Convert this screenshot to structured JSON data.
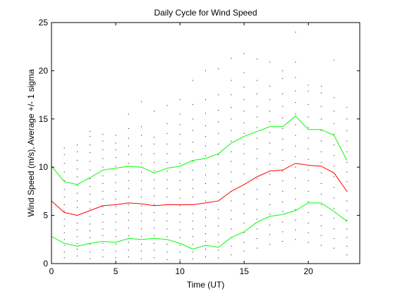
{
  "chart_data": {
    "type": "line",
    "title": "Daily Cycle for Wind Speed",
    "xlabel": "Time (UT)",
    "ylabel": "Wind Speed (m/s), Average +/- 1 sigma",
    "xlim": [
      0,
      24
    ],
    "ylim": [
      0,
      25
    ],
    "xticks": [
      0,
      5,
      10,
      15,
      20
    ],
    "yticks": [
      0,
      5,
      10,
      15,
      20,
      25
    ],
    "grid": false,
    "x": [
      0,
      1,
      2,
      3,
      4,
      5,
      6,
      7,
      8,
      9,
      10,
      11,
      12,
      13,
      14,
      15,
      16,
      17,
      18,
      19,
      20,
      21,
      22,
      23
    ],
    "series": [
      {
        "color": "#00ff00",
        "values": [
          10.1,
          8.5,
          8.2,
          8.9,
          9.7,
          9.9,
          10.1,
          10.0,
          9.4,
          9.9,
          10.1,
          10.7,
          10.9,
          11.4,
          12.5,
          13.2,
          13.7,
          14.2,
          14.2,
          15.3,
          13.9,
          13.9,
          13.3,
          10.7
        ]
      },
      {
        "color": "#ff0000",
        "values": [
          6.5,
          5.3,
          5.0,
          5.5,
          6.0,
          6.1,
          6.3,
          6.2,
          6.0,
          6.1,
          6.1,
          6.1,
          6.3,
          6.5,
          7.5,
          8.2,
          9.0,
          9.6,
          9.7,
          10.4,
          10.2,
          10.1,
          9.4,
          7.5
        ]
      },
      {
        "color": "#00ff00",
        "values": [
          2.8,
          2.1,
          1.8,
          2.1,
          2.3,
          2.2,
          2.6,
          2.5,
          2.6,
          2.5,
          2.1,
          1.5,
          1.9,
          1.7,
          2.7,
          3.3,
          4.3,
          4.9,
          5.1,
          5.5,
          6.3,
          6.3,
          5.4,
          4.4
        ]
      }
    ],
    "scatter_color": "#000000",
    "scatter_points": [
      [
        0,
        0.3
      ],
      [
        0,
        1.1
      ],
      [
        0,
        2.0
      ],
      [
        0,
        2.7
      ],
      [
        0,
        3.4
      ],
      [
        0,
        4.1
      ],
      [
        0,
        4.9
      ],
      [
        0,
        5.6
      ],
      [
        0,
        6.2
      ],
      [
        0,
        7.0
      ],
      [
        0,
        7.8
      ],
      [
        0,
        8.6
      ],
      [
        0,
        9.4
      ],
      [
        0,
        10.2
      ],
      [
        0,
        11.1
      ],
      [
        1,
        0.6
      ],
      [
        1,
        1.2
      ],
      [
        1,
        1.9
      ],
      [
        1,
        2.5
      ],
      [
        1,
        3.2
      ],
      [
        1,
        3.9
      ],
      [
        1,
        4.6
      ],
      [
        1,
        5.4
      ],
      [
        1,
        6.1
      ],
      [
        1,
        6.9
      ],
      [
        1,
        7.7
      ],
      [
        1,
        8.6
      ],
      [
        1,
        9.5
      ],
      [
        1,
        10.4
      ],
      [
        1,
        11.3
      ],
      [
        1,
        12.0
      ],
      [
        2,
        0.8
      ],
      [
        2,
        1.5
      ],
      [
        2,
        2.1
      ],
      [
        2,
        2.8
      ],
      [
        2,
        3.5
      ],
      [
        2,
        4.2
      ],
      [
        2,
        5.0
      ],
      [
        2,
        5.8
      ],
      [
        2,
        6.5
      ],
      [
        2,
        7.3
      ],
      [
        2,
        8.1
      ],
      [
        2,
        9.0
      ],
      [
        2,
        9.8
      ],
      [
        2,
        10.7
      ],
      [
        2,
        11.6
      ],
      [
        2,
        12.3
      ],
      [
        3,
        0.5
      ],
      [
        3,
        1.2
      ],
      [
        3,
        2.0
      ],
      [
        3,
        2.7
      ],
      [
        3,
        3.4
      ],
      [
        3,
        4.1
      ],
      [
        3,
        4.9
      ],
      [
        3,
        5.7
      ],
      [
        3,
        6.4
      ],
      [
        3,
        7.2
      ],
      [
        3,
        8.0
      ],
      [
        3,
        8.8
      ],
      [
        3,
        9.7
      ],
      [
        3,
        10.6
      ],
      [
        3,
        11.5
      ],
      [
        3,
        12.3
      ],
      [
        3,
        13.2
      ],
      [
        3,
        13.7
      ],
      [
        4,
        0.7
      ],
      [
        4,
        1.4
      ],
      [
        4,
        2.1
      ],
      [
        4,
        2.9
      ],
      [
        4,
        3.6
      ],
      [
        4,
        4.3
      ],
      [
        4,
        5.1
      ],
      [
        4,
        5.9
      ],
      [
        4,
        6.7
      ],
      [
        4,
        7.5
      ],
      [
        4,
        8.3
      ],
      [
        4,
        9.1
      ],
      [
        4,
        10.0
      ],
      [
        4,
        10.9
      ],
      [
        4,
        11.8
      ],
      [
        4,
        12.7
      ],
      [
        4,
        13.4
      ],
      [
        5,
        0.6
      ],
      [
        5,
        1.3
      ],
      [
        5,
        2.0
      ],
      [
        5,
        2.8
      ],
      [
        5,
        3.5
      ],
      [
        5,
        4.3
      ],
      [
        5,
        5.1
      ],
      [
        5,
        5.9
      ],
      [
        5,
        6.7
      ],
      [
        5,
        7.5
      ],
      [
        5,
        8.4
      ],
      [
        5,
        9.2
      ],
      [
        5,
        10.1
      ],
      [
        5,
        11.0
      ],
      [
        5,
        11.8
      ],
      [
        5,
        12.5
      ],
      [
        5,
        13.3
      ],
      [
        6,
        0.7
      ],
      [
        6,
        1.4
      ],
      [
        6,
        2.2
      ],
      [
        6,
        2.9
      ],
      [
        6,
        3.7
      ],
      [
        6,
        4.5
      ],
      [
        6,
        5.3
      ],
      [
        6,
        6.1
      ],
      [
        6,
        6.9
      ],
      [
        6,
        7.8
      ],
      [
        6,
        8.6
      ],
      [
        6,
        9.5
      ],
      [
        6,
        10.4
      ],
      [
        6,
        11.3
      ],
      [
        6,
        12.2
      ],
      [
        6,
        13.0
      ],
      [
        6,
        14.0
      ],
      [
        6,
        15.5
      ],
      [
        7,
        0.5
      ],
      [
        7,
        1.3
      ],
      [
        7,
        2.0
      ],
      [
        7,
        2.8
      ],
      [
        7,
        3.6
      ],
      [
        7,
        4.4
      ],
      [
        7,
        5.2
      ],
      [
        7,
        6.0
      ],
      [
        7,
        6.9
      ],
      [
        7,
        7.7
      ],
      [
        7,
        8.6
      ],
      [
        7,
        9.5
      ],
      [
        7,
        10.4
      ],
      [
        7,
        11.3
      ],
      [
        7,
        12.2
      ],
      [
        7,
        13.3
      ],
      [
        7,
        14.2
      ],
      [
        7,
        16.8
      ],
      [
        8,
        0.6
      ],
      [
        8,
        1.4
      ],
      [
        8,
        2.1
      ],
      [
        8,
        2.9
      ],
      [
        8,
        3.7
      ],
      [
        8,
        4.5
      ],
      [
        8,
        5.3
      ],
      [
        8,
        6.1
      ],
      [
        8,
        7.0
      ],
      [
        8,
        7.8
      ],
      [
        8,
        8.7
      ],
      [
        8,
        9.6
      ],
      [
        8,
        10.5
      ],
      [
        8,
        11.4
      ],
      [
        8,
        12.4
      ],
      [
        8,
        13.1
      ],
      [
        8,
        15.8
      ],
      [
        9,
        0.4
      ],
      [
        9,
        1.2
      ],
      [
        9,
        2.0
      ],
      [
        9,
        2.8
      ],
      [
        9,
        3.6
      ],
      [
        9,
        4.4
      ],
      [
        9,
        5.2
      ],
      [
        9,
        6.1
      ],
      [
        9,
        6.9
      ],
      [
        9,
        7.8
      ],
      [
        9,
        8.7
      ],
      [
        9,
        9.6
      ],
      [
        9,
        10.5
      ],
      [
        9,
        11.4
      ],
      [
        9,
        12.4
      ],
      [
        9,
        13.5
      ],
      [
        9,
        14.5
      ],
      [
        9,
        16.4
      ],
      [
        10,
        0.4
      ],
      [
        10,
        1.2
      ],
      [
        10,
        1.9
      ],
      [
        10,
        2.7
      ],
      [
        10,
        3.5
      ],
      [
        10,
        4.3
      ],
      [
        10,
        5.1
      ],
      [
        10,
        6.0
      ],
      [
        10,
        6.8
      ],
      [
        10,
        7.7
      ],
      [
        10,
        8.6
      ],
      [
        10,
        9.5
      ],
      [
        10,
        10.4
      ],
      [
        10,
        11.4
      ],
      [
        10,
        12.4
      ],
      [
        10,
        13.4
      ],
      [
        10,
        14.4
      ],
      [
        10,
        15.5
      ],
      [
        10,
        17.0
      ],
      [
        11,
        0.5
      ],
      [
        11,
        1.2
      ],
      [
        11,
        2.0
      ],
      [
        11,
        2.8
      ],
      [
        11,
        3.6
      ],
      [
        11,
        4.4
      ],
      [
        11,
        5.2
      ],
      [
        11,
        6.1
      ],
      [
        11,
        6.9
      ],
      [
        11,
        7.8
      ],
      [
        11,
        8.7
      ],
      [
        11,
        9.7
      ],
      [
        11,
        10.6
      ],
      [
        11,
        11.6
      ],
      [
        11,
        12.6
      ],
      [
        11,
        13.8
      ],
      [
        11,
        15.0
      ],
      [
        11,
        16.5
      ],
      [
        11,
        19.0
      ],
      [
        12,
        0.7
      ],
      [
        12,
        1.5
      ],
      [
        12,
        2.3
      ],
      [
        12,
        3.1
      ],
      [
        12,
        3.9
      ],
      [
        12,
        4.8
      ],
      [
        12,
        5.6
      ],
      [
        12,
        6.5
      ],
      [
        12,
        7.4
      ],
      [
        12,
        8.3
      ],
      [
        12,
        9.2
      ],
      [
        12,
        10.2
      ],
      [
        12,
        11.2
      ],
      [
        12,
        12.2
      ],
      [
        12,
        13.2
      ],
      [
        12,
        14.3
      ],
      [
        12,
        15.6
      ],
      [
        12,
        17.0
      ],
      [
        12,
        20.0
      ],
      [
        13,
        0.6
      ],
      [
        13,
        1.4
      ],
      [
        13,
        2.2
      ],
      [
        13,
        3.0
      ],
      [
        13,
        3.9
      ],
      [
        13,
        4.7
      ],
      [
        13,
        5.6
      ],
      [
        13,
        6.5
      ],
      [
        13,
        7.4
      ],
      [
        13,
        8.3
      ],
      [
        13,
        9.3
      ],
      [
        13,
        10.3
      ],
      [
        13,
        11.3
      ],
      [
        13,
        12.4
      ],
      [
        13,
        13.5
      ],
      [
        13,
        14.7
      ],
      [
        13,
        15.9
      ],
      [
        13,
        17.5
      ],
      [
        13,
        20.2
      ],
      [
        14,
        0.9
      ],
      [
        14,
        1.8
      ],
      [
        14,
        2.7
      ],
      [
        14,
        3.6
      ],
      [
        14,
        4.6
      ],
      [
        14,
        5.5
      ],
      [
        14,
        6.5
      ],
      [
        14,
        7.5
      ],
      [
        14,
        8.5
      ],
      [
        14,
        9.5
      ],
      [
        14,
        10.6
      ],
      [
        14,
        11.6
      ],
      [
        14,
        12.7
      ],
      [
        14,
        13.8
      ],
      [
        14,
        15.0
      ],
      [
        14,
        16.2
      ],
      [
        14,
        17.5
      ],
      [
        14,
        19.0
      ],
      [
        14,
        21.3
      ],
      [
        15,
        1.3
      ],
      [
        15,
        2.2
      ],
      [
        15,
        3.2
      ],
      [
        15,
        4.2
      ],
      [
        15,
        5.2
      ],
      [
        15,
        6.2
      ],
      [
        15,
        7.2
      ],
      [
        15,
        8.2
      ],
      [
        15,
        9.3
      ],
      [
        15,
        10.3
      ],
      [
        15,
        11.4
      ],
      [
        15,
        12.4
      ],
      [
        15,
        13.5
      ],
      [
        15,
        14.6
      ],
      [
        15,
        15.8
      ],
      [
        15,
        17.0
      ],
      [
        15,
        18.3
      ],
      [
        15,
        19.8
      ],
      [
        15,
        21.8
      ],
      [
        16,
        1.6
      ],
      [
        16,
        2.6
      ],
      [
        16,
        3.6
      ],
      [
        16,
        4.6
      ],
      [
        16,
        5.6
      ],
      [
        16,
        6.7
      ],
      [
        16,
        7.7
      ],
      [
        16,
        8.8
      ],
      [
        16,
        9.8
      ],
      [
        16,
        10.9
      ],
      [
        16,
        11.9
      ],
      [
        16,
        13.0
      ],
      [
        16,
        14.1
      ],
      [
        16,
        15.2
      ],
      [
        16,
        16.3
      ],
      [
        16,
        17.6
      ],
      [
        16,
        19.0
      ],
      [
        16,
        21.2
      ],
      [
        17,
        2.0
      ],
      [
        17,
        3.0
      ],
      [
        17,
        4.0
      ],
      [
        17,
        5.1
      ],
      [
        17,
        6.1
      ],
      [
        17,
        7.2
      ],
      [
        17,
        8.2
      ],
      [
        17,
        9.3
      ],
      [
        17,
        10.3
      ],
      [
        17,
        11.4
      ],
      [
        17,
        12.5
      ],
      [
        17,
        13.6
      ],
      [
        17,
        14.7
      ],
      [
        17,
        15.8
      ],
      [
        17,
        17.0
      ],
      [
        17,
        18.4
      ],
      [
        17,
        20.9
      ],
      [
        18,
        2.3
      ],
      [
        18,
        3.3
      ],
      [
        18,
        4.3
      ],
      [
        18,
        5.4
      ],
      [
        18,
        6.4
      ],
      [
        18,
        7.5
      ],
      [
        18,
        8.6
      ],
      [
        18,
        9.6
      ],
      [
        18,
        10.7
      ],
      [
        18,
        11.8
      ],
      [
        18,
        12.9
      ],
      [
        18,
        14.0
      ],
      [
        18,
        15.1
      ],
      [
        18,
        16.3
      ],
      [
        18,
        17.6
      ],
      [
        18,
        19.2
      ],
      [
        18,
        20.0
      ],
      [
        19,
        2.5
      ],
      [
        19,
        3.5
      ],
      [
        19,
        4.5
      ],
      [
        19,
        5.6
      ],
      [
        19,
        6.7
      ],
      [
        19,
        7.8
      ],
      [
        19,
        8.9
      ],
      [
        19,
        10.0
      ],
      [
        19,
        11.1
      ],
      [
        19,
        12.2
      ],
      [
        19,
        13.3
      ],
      [
        19,
        14.4
      ],
      [
        19,
        15.5
      ],
      [
        19,
        16.7
      ],
      [
        19,
        17.9
      ],
      [
        19,
        19.3
      ],
      [
        19,
        20.9
      ],
      [
        19,
        24.0
      ],
      [
        20,
        2.2
      ],
      [
        20,
        3.2
      ],
      [
        20,
        4.2
      ],
      [
        20,
        5.3
      ],
      [
        20,
        6.4
      ],
      [
        20,
        7.5
      ],
      [
        20,
        8.6
      ],
      [
        20,
        9.7
      ],
      [
        20,
        10.8
      ],
      [
        20,
        11.9
      ],
      [
        20,
        13.0
      ],
      [
        20,
        14.1
      ],
      [
        20,
        15.2
      ],
      [
        20,
        16.5
      ],
      [
        20,
        17.9
      ],
      [
        20,
        18.5
      ],
      [
        21,
        1.9
      ],
      [
        21,
        2.9
      ],
      [
        21,
        3.9
      ],
      [
        21,
        5.0
      ],
      [
        21,
        6.1
      ],
      [
        21,
        7.2
      ],
      [
        21,
        8.3
      ],
      [
        21,
        9.4
      ],
      [
        21,
        10.5
      ],
      [
        21,
        11.6
      ],
      [
        21,
        12.7
      ],
      [
        21,
        13.8
      ],
      [
        21,
        15.0
      ],
      [
        21,
        16.3
      ],
      [
        21,
        17.7
      ],
      [
        21,
        18.4
      ],
      [
        22,
        1.6
      ],
      [
        22,
        2.6
      ],
      [
        22,
        3.6
      ],
      [
        22,
        4.7
      ],
      [
        22,
        5.7
      ],
      [
        22,
        6.8
      ],
      [
        22,
        7.9
      ],
      [
        22,
        9.0
      ],
      [
        22,
        10.1
      ],
      [
        22,
        11.2
      ],
      [
        22,
        12.3
      ],
      [
        22,
        13.4
      ],
      [
        22,
        14.5
      ],
      [
        22,
        15.8
      ],
      [
        22,
        17.2
      ],
      [
        22,
        21.1
      ],
      [
        23,
        0.9
      ],
      [
        23,
        1.8
      ],
      [
        23,
        2.7
      ],
      [
        23,
        3.6
      ],
      [
        23,
        4.5
      ],
      [
        23,
        5.5
      ],
      [
        23,
        6.5
      ],
      [
        23,
        7.5
      ],
      [
        23,
        8.5
      ],
      [
        23,
        9.5
      ],
      [
        23,
        10.5
      ],
      [
        23,
        11.6
      ],
      [
        23,
        12.7
      ],
      [
        23,
        13.8
      ],
      [
        23,
        15.0
      ],
      [
        23,
        16.2
      ]
    ]
  }
}
